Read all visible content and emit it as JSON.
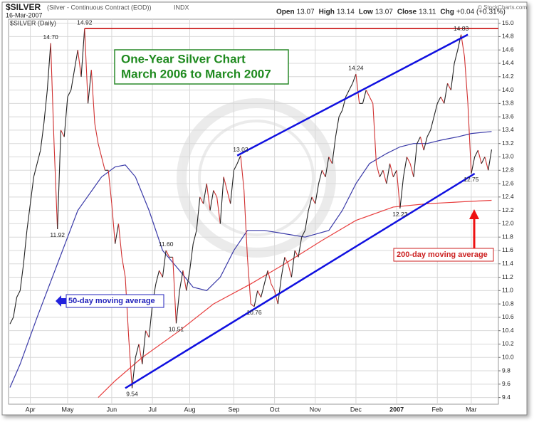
{
  "chart_data": {
    "type": "line",
    "header": {
      "symbol": "$SILVER",
      "description": "(Silver - Continuous Contract (EOD))",
      "exchange": "INDX",
      "date": "16-Mar-2007",
      "stats": [
        {
          "label": "Open",
          "value": "13.07"
        },
        {
          "label": "High",
          "value": "13.14"
        },
        {
          "label": "Low",
          "value": "13.07"
        },
        {
          "label": "Close",
          "value": "13.11"
        },
        {
          "label": "Chg",
          "value": "+0.04 (+0.31%)"
        }
      ],
      "copyright": "© StockCharts.com"
    },
    "title": [
      "One-Year Silver Chart",
      "March 2006 to March 2007"
    ],
    "annotations": {
      "ma50": "50-day moving average",
      "ma200": "200-day moving average"
    },
    "series": [
      {
        "name": "$SILVER (Daily)",
        "color": "#222222",
        "down_color": "#d03030",
        "values": [
          10.5,
          10.6,
          10.9,
          11.0,
          11.4,
          11.9,
          12.3,
          12.7,
          12.9,
          13.1,
          13.5,
          14.0,
          14.7,
          13.2,
          11.92,
          13.4,
          13.3,
          13.9,
          14.0,
          14.3,
          14.6,
          14.2,
          14.92,
          13.8,
          14.3,
          13.5,
          13.2,
          13.0,
          12.8,
          12.8,
          12.3,
          11.7,
          12.0,
          11.5,
          11.2,
          10.3,
          9.54,
          10.0,
          10.2,
          9.9,
          10.4,
          10.3,
          10.8,
          11.1,
          11.3,
          11.2,
          11.6,
          11.5,
          11.5,
          10.51,
          11.0,
          11.3,
          11.0,
          11.3,
          11.7,
          11.9,
          12.4,
          12.3,
          12.6,
          12.2,
          12.5,
          12.4,
          12.0,
          12.7,
          12.5,
          12.3,
          12.8,
          12.9,
          13.02,
          12.5,
          11.5,
          10.8,
          10.76,
          11.0,
          10.9,
          11.1,
          11.3,
          11.1,
          11.0,
          10.8,
          11.2,
          11.5,
          11.4,
          11.2,
          11.6,
          11.5,
          11.8,
          11.9,
          12.2,
          12.4,
          12.3,
          12.6,
          12.8,
          12.7,
          13.0,
          12.9,
          13.3,
          13.6,
          13.7,
          13.9,
          14.0,
          14.1,
          14.24,
          13.8,
          13.8,
          14.0,
          13.9,
          13.8,
          12.9,
          12.7,
          12.8,
          12.6,
          12.9,
          12.7,
          12.8,
          12.23,
          12.7,
          13.0,
          12.9,
          12.7,
          13.2,
          13.3,
          13.1,
          13.3,
          13.4,
          13.6,
          13.8,
          13.9,
          13.8,
          14.1,
          14.0,
          14.4,
          14.6,
          14.83,
          14.5,
          13.8,
          12.75,
          13.0,
          13.1,
          12.9,
          13.0,
          12.8,
          13.11
        ],
        "value_labels": [
          null,
          null,
          null,
          null,
          null,
          null,
          null,
          null,
          null,
          null,
          null,
          null,
          "14.70",
          null,
          "11.92",
          null,
          null,
          null,
          null,
          null,
          null,
          null,
          "14.92",
          null,
          null,
          null,
          null,
          null,
          null,
          null,
          null,
          null,
          null,
          null,
          null,
          null,
          "9.54",
          null,
          null,
          null,
          null,
          null,
          null,
          null,
          null,
          null,
          "11.60",
          null,
          null,
          "10.51",
          null,
          null,
          null,
          null,
          null,
          null,
          null,
          null,
          null,
          null,
          null,
          null,
          null,
          null,
          null,
          null,
          null,
          null,
          "13.02",
          null,
          null,
          null,
          "10.76",
          null,
          null,
          null,
          null,
          null,
          null,
          null,
          null,
          null,
          null,
          null,
          null,
          null,
          null,
          null,
          null,
          null,
          null,
          null,
          null,
          null,
          null,
          null,
          null,
          null,
          null,
          null,
          null,
          null,
          "14.24",
          null,
          null,
          null,
          null,
          null,
          null,
          null,
          null,
          null,
          null,
          null,
          null,
          "12.23",
          null,
          null,
          null,
          null,
          null,
          null,
          null,
          null,
          null,
          null,
          null,
          null,
          null,
          null,
          null,
          null,
          null,
          "14.83",
          null,
          null,
          "12.75",
          null,
          null,
          null,
          null,
          null,
          null
        ]
      },
      {
        "color": "#3a3aa8",
        "x": [
          0,
          3,
          8,
          14,
          20,
          27,
          31,
          34,
          37,
          41,
          45,
          50,
          54,
          58,
          62,
          66,
          70,
          75,
          81,
          87,
          94,
          98,
          102,
          106,
          111,
          115,
          119,
          123,
          127,
          132,
          136,
          142
        ],
        "values": [
          9.55,
          9.9,
          10.6,
          11.4,
          12.2,
          12.7,
          12.85,
          12.88,
          12.7,
          12.2,
          11.6,
          11.3,
          11.05,
          11.0,
          11.2,
          11.6,
          11.9,
          11.9,
          11.85,
          11.8,
          11.9,
          12.2,
          12.6,
          12.9,
          13.05,
          13.15,
          13.2,
          13.2,
          13.25,
          13.3,
          13.35,
          13.38
        ]
      },
      {
        "color": "#e84040",
        "x": [
          26,
          31,
          39,
          50,
          60,
          71,
          81,
          92,
          102,
          113,
          123,
          134,
          142
        ],
        "values": [
          9.4,
          9.65,
          10.0,
          10.4,
          10.8,
          11.1,
          11.4,
          11.75,
          12.05,
          12.25,
          12.3,
          12.33,
          12.35
        ]
      }
    ],
    "trendlines": [
      {
        "color": "#1010e0",
        "x": [
          67,
          135
        ],
        "values": [
          13.02,
          14.83
        ]
      },
      {
        "color": "#1010e0",
        "x": [
          34,
          137
        ],
        "values": [
          9.54,
          12.75
        ]
      },
      {
        "color": "#cc1f1f",
        "x": [
          22,
          144
        ],
        "values": [
          14.92,
          14.92
        ]
      }
    ],
    "xlim": [
      0,
      144
    ],
    "xticks": [
      {
        "value": 6,
        "label": "Apr"
      },
      {
        "value": 17,
        "label": "May"
      },
      {
        "value": 30,
        "label": "Jun"
      },
      {
        "value": 42,
        "label": "Jul"
      },
      {
        "value": 53,
        "label": "Aug"
      },
      {
        "value": 66,
        "label": "Sep"
      },
      {
        "value": 78,
        "label": "Oct"
      },
      {
        "value": 90,
        "label": "Nov"
      },
      {
        "value": 102,
        "label": "Dec"
      },
      {
        "value": 114,
        "label": "2007"
      },
      {
        "value": 126,
        "label": "Feb"
      },
      {
        "value": 136,
        "label": "Mar"
      }
    ],
    "ylim": [
      9.3,
      15.06
    ],
    "yticks": [
      9.4,
      9.6,
      9.8,
      {
        "value": 10,
        "label": "10.0"
      },
      10.2,
      10.4,
      10.6,
      10.8,
      {
        "value": 11,
        "label": "11.0"
      },
      11.2,
      11.4,
      11.6,
      11.8,
      {
        "value": 12,
        "label": "12.0"
      },
      12.2,
      12.4,
      12.6,
      12.8,
      {
        "value": 13,
        "label": "13.0"
      },
      13.2,
      13.4,
      13.6,
      13.8,
      {
        "value": 14,
        "label": "14.0"
      },
      14.2,
      14.4,
      14.6,
      14.8,
      {
        "value": 15,
        "label": "15.0"
      }
    ],
    "grid": true
  }
}
